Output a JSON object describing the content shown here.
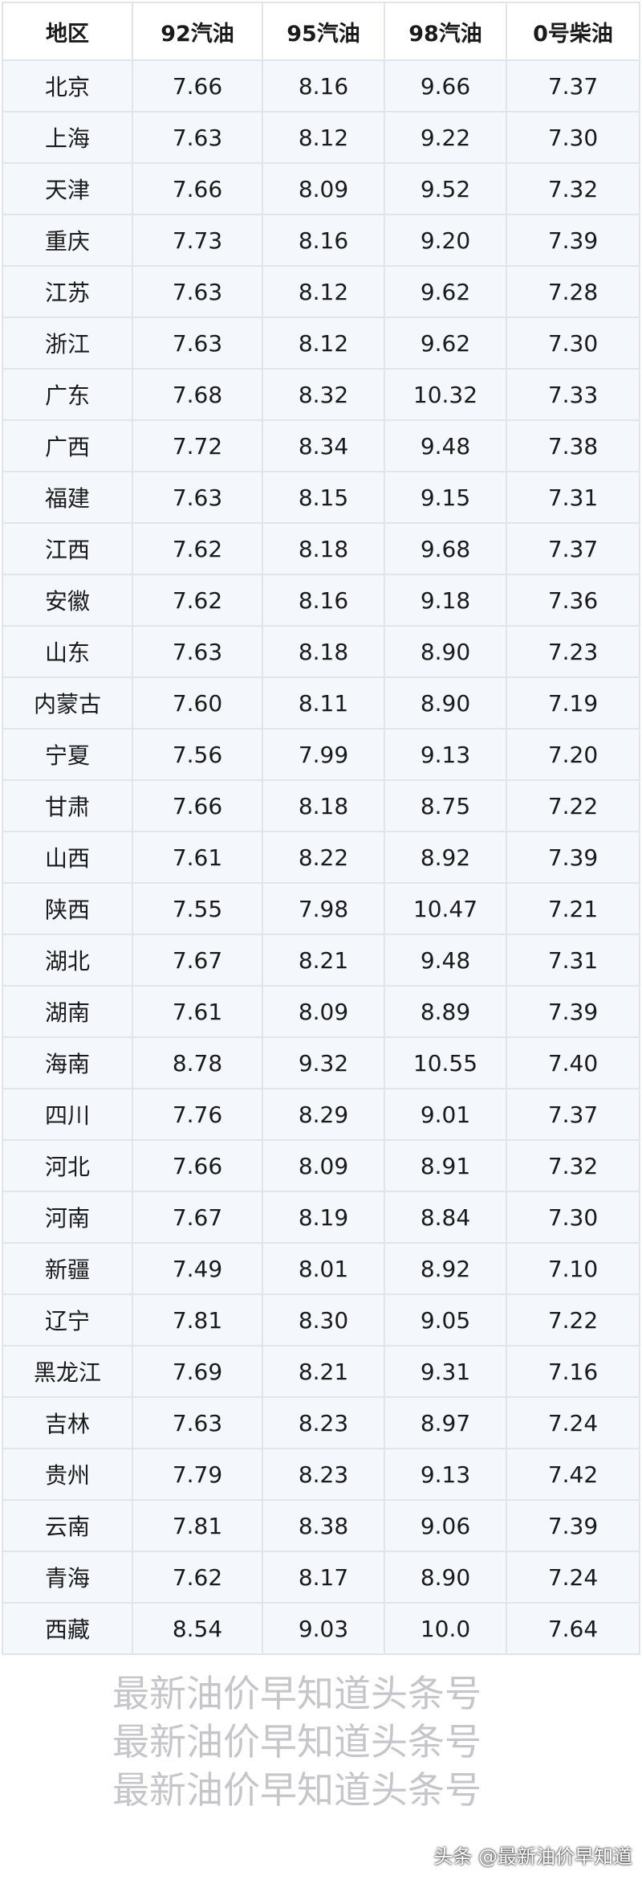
{
  "table": {
    "headers": [
      "地区",
      "92汽油",
      "95汽油",
      "98汽油",
      "0号柴油"
    ],
    "rows": [
      [
        "北京",
        "7.66",
        "8.16",
        "9.66",
        "7.37"
      ],
      [
        "上海",
        "7.63",
        "8.12",
        "9.22",
        "7.30"
      ],
      [
        "天津",
        "7.66",
        "8.09",
        "9.52",
        "7.32"
      ],
      [
        "重庆",
        "7.73",
        "8.16",
        "9.20",
        "7.39"
      ],
      [
        "江苏",
        "7.63",
        "8.12",
        "9.62",
        "7.28"
      ],
      [
        "浙江",
        "7.63",
        "8.12",
        "9.62",
        "7.30"
      ],
      [
        "广东",
        "7.68",
        "8.32",
        "10.32",
        "7.33"
      ],
      [
        "广西",
        "7.72",
        "8.34",
        "9.48",
        "7.38"
      ],
      [
        "福建",
        "7.63",
        "8.15",
        "9.15",
        "7.31"
      ],
      [
        "江西",
        "7.62",
        "8.18",
        "9.68",
        "7.37"
      ],
      [
        "安徽",
        "7.62",
        "8.16",
        "9.18",
        "7.36"
      ],
      [
        "山东",
        "7.63",
        "8.18",
        "8.90",
        "7.23"
      ],
      [
        "内蒙古",
        "7.60",
        "8.11",
        "8.90",
        "7.19"
      ],
      [
        "宁夏",
        "7.56",
        "7.99",
        "9.13",
        "7.20"
      ],
      [
        "甘肃",
        "7.66",
        "8.18",
        "8.75",
        "7.22"
      ],
      [
        "山西",
        "7.61",
        "8.22",
        "8.92",
        "7.39"
      ],
      [
        "陕西",
        "7.55",
        "7.98",
        "10.47",
        "7.21"
      ],
      [
        "湖北",
        "7.67",
        "8.21",
        "9.48",
        "7.31"
      ],
      [
        "湖南",
        "7.61",
        "8.09",
        "8.89",
        "7.39"
      ],
      [
        "海南",
        "8.78",
        "9.32",
        "10.55",
        "7.40"
      ],
      [
        "四川",
        "7.76",
        "8.29",
        "9.01",
        "7.37"
      ],
      [
        "河北",
        "7.66",
        "8.09",
        "8.91",
        "7.32"
      ],
      [
        "河南",
        "7.67",
        "8.19",
        "8.84",
        "7.30"
      ],
      [
        "新疆",
        "7.49",
        "8.01",
        "8.92",
        "7.10"
      ],
      [
        "辽宁",
        "7.81",
        "8.30",
        "9.05",
        "7.22"
      ],
      [
        "黑龙江",
        "7.69",
        "8.21",
        "9.31",
        "7.16"
      ],
      [
        "吉林",
        "7.63",
        "8.23",
        "8.97",
        "7.24"
      ],
      [
        "贵州",
        "7.79",
        "8.23",
        "9.13",
        "7.42"
      ],
      [
        "云南",
        "7.81",
        "8.38",
        "9.06",
        "7.39"
      ],
      [
        "青海",
        "7.62",
        "8.17",
        "8.90",
        "7.24"
      ],
      [
        "西藏",
        "8.54",
        "9.03",
        "10.0",
        "7.64"
      ]
    ]
  },
  "watermark": "最新油价早知道头条号",
  "footer_watermark": "头条 @最新油价早知道"
}
